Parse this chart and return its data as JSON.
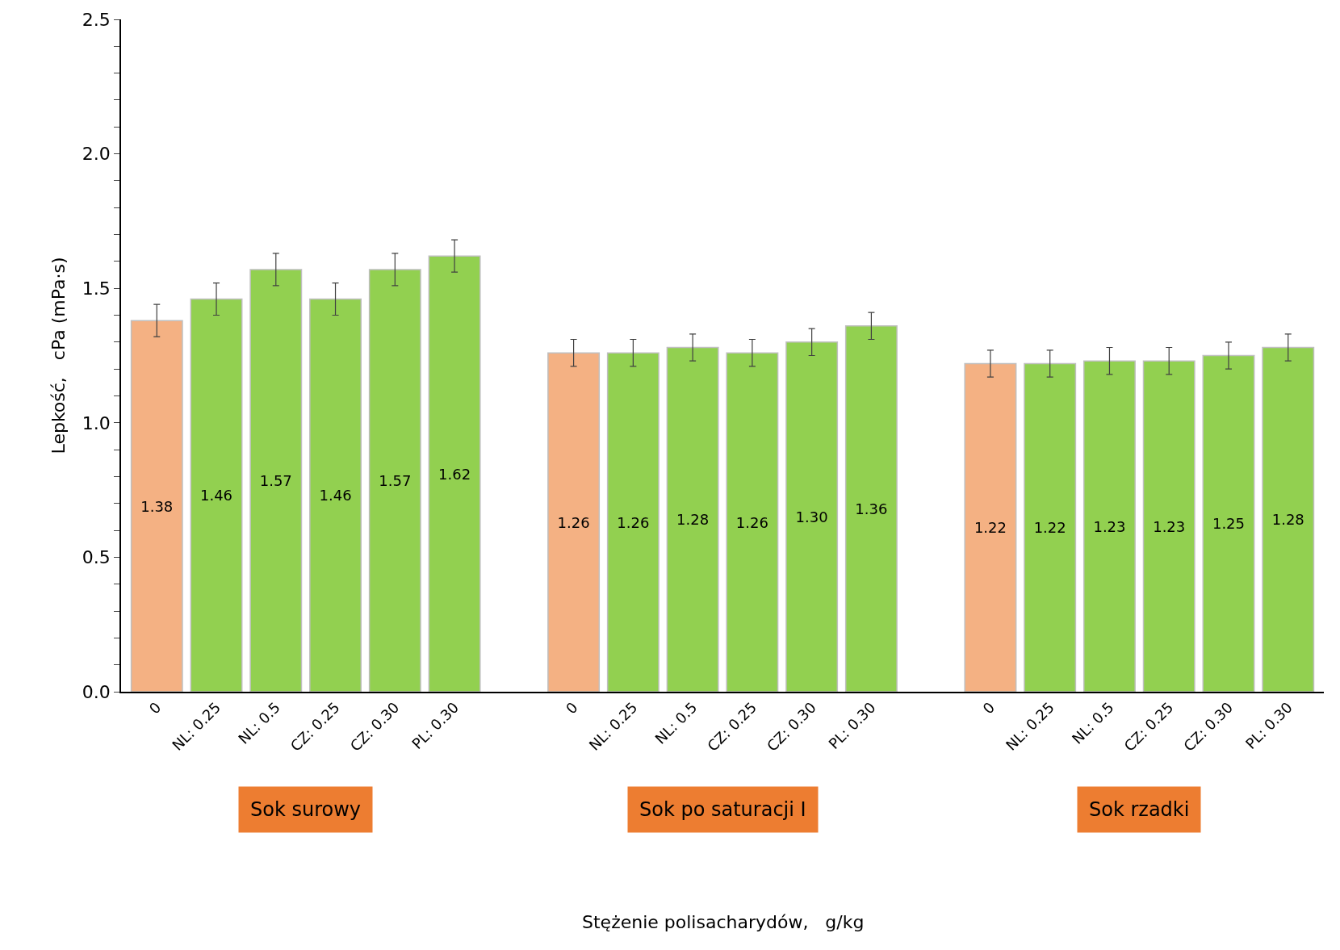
{
  "chart_data": {
    "type": "bar",
    "ylabel": "Lepkość,   cPa (mPa·s)",
    "categories": [
      "0",
      "NL: 0.25",
      "NL: 0.5",
      "CZ: 0.25",
      "CZ: 0.30",
      "PL: 0.30",
      null,
      "0",
      "NL: 0.25",
      "NL: 0.5",
      "CZ: 0.25",
      "CZ: 0.30",
      "PL: 0.30",
      null,
      "0",
      "NL: 0.25",
      "NL: 0.5",
      "CZ: 0.25",
      "CZ: 0.30",
      "PL: 0.30"
    ],
    "values": [
      1.38,
      1.46,
      1.57,
      1.46,
      1.57,
      1.62,
      null,
      1.26,
      1.26,
      1.28,
      1.26,
      1.3,
      1.36,
      null,
      1.22,
      1.22,
      1.23,
      1.23,
      1.25,
      1.28
    ],
    "colors": [
      "#f4b183",
      "#92d050",
      "#92d050",
      "#92d050",
      "#92d050",
      "#92d050",
      null,
      "#f4b183",
      "#92d050",
      "#92d050",
      "#92d050",
      "#92d050",
      "#92d050",
      null,
      "#f4b183",
      "#92d050",
      "#92d050",
      "#92d050",
      "#92d050",
      "#92d050"
    ],
    "errors": [
      0.06,
      0.06,
      0.06,
      0.06,
      0.06,
      0.06,
      null,
      0.05,
      0.05,
      0.05,
      0.05,
      0.05,
      0.05,
      null,
      0.05,
      0.05,
      0.05,
      0.05,
      0.05,
      0.05
    ],
    "value_labels": [
      "1.38",
      "1.46",
      "1.57",
      "1.46",
      "1.57",
      "1.62",
      null,
      "1.26",
      "1.26",
      "1.28",
      "1.26",
      "1.30",
      "1.36",
      null,
      "1.22",
      "1.22",
      "1.23",
      "1.23",
      "1.25",
      "1.28"
    ],
    "annotations": [
      "Sok surowy",
      "Sok po saturacji I",
      "Sok rzadki",
      "Stężenie polisacharydów,   g/kg"
    ],
    "ylim": [
      0,
      2.5
    ],
    "yticks": [
      {
        "value": 0,
        "label": "0.0"
      },
      {
        "value": 0.1,
        "label": null
      },
      {
        "value": 0.2,
        "label": null
      },
      {
        "value": 0.3,
        "label": null
      },
      {
        "value": 0.4,
        "label": null
      },
      {
        "value": 0.5,
        "label": "0.5"
      },
      {
        "value": 0.6,
        "label": null
      },
      {
        "value": 0.7,
        "label": null
      },
      {
        "value": 0.8,
        "label": null
      },
      {
        "value": 0.9,
        "label": null
      },
      {
        "value": 1.0,
        "label": "1.0"
      },
      {
        "value": 1.1,
        "label": null
      },
      {
        "value": 1.2,
        "label": null
      },
      {
        "value": 1.3,
        "label": null
      },
      {
        "value": 1.4,
        "label": null
      },
      {
        "value": 1.5,
        "label": "1.5"
      },
      {
        "value": 1.6,
        "label": null
      },
      {
        "value": 1.7,
        "label": null
      },
      {
        "value": 1.8,
        "label": null
      },
      {
        "value": 1.9,
        "label": null
      },
      {
        "value": 2.0,
        "label": "2.0"
      },
      {
        "value": 2.1,
        "label": null
      },
      {
        "value": 2.2,
        "label": null
      },
      {
        "value": 2.3,
        "label": null
      },
      {
        "value": 2.4,
        "label": null
      },
      {
        "value": 2.5,
        "label": "2.5"
      }
    ]
  }
}
